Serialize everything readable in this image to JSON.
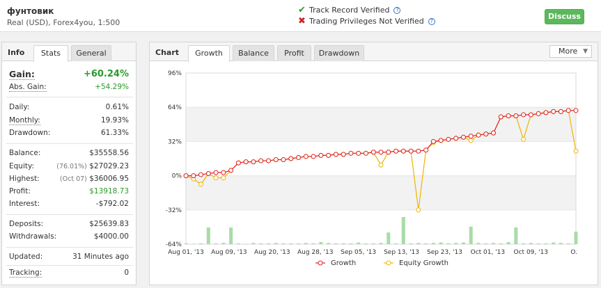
{
  "header": {
    "account_name": "фунтовик",
    "account_sub": "Real (USD), Forex4you, 1:500",
    "track_record": "Track Record Verified",
    "trading_privileges": "Trading Privileges Not Verified",
    "discuss_label": "Discuss",
    "check_color": "#2a9a2a",
    "cross_color": "#cc2222",
    "help_icon_text": "?"
  },
  "info": {
    "title": "Info",
    "tabs": [
      "Stats",
      "General"
    ],
    "active_tab": "Stats",
    "gain_label": "Gain:",
    "gain_value": "+60.24%",
    "abs_gain_label": "Abs. Gain:",
    "abs_gain_value": "+54.29%",
    "daily_label": "Daily:",
    "daily_value": "0.61%",
    "monthly_label": "Monthly:",
    "monthly_value": "19.93%",
    "drawdown_label": "Drawdown:",
    "drawdown_value": "61.33%",
    "balance_label": "Balance:",
    "balance_value": "$35558.56",
    "equity_label": "Equity:",
    "equity_pct": "(76.01%)",
    "equity_value": "$27029.23",
    "highest_label": "Highest:",
    "highest_date": "(Oct 07)",
    "highest_value": "$36006.95",
    "profit_label": "Profit:",
    "profit_value": "$13918.73",
    "interest_label": "Interest:",
    "interest_value": "-$792.02",
    "deposits_label": "Deposits:",
    "deposits_value": "$25639.83",
    "withdrawals_label": "Withdrawals:",
    "withdrawals_value": "$4000.00",
    "updated_label": "Updated:",
    "updated_value": "31 Minutes ago",
    "tracking_label": "Tracking:",
    "tracking_value": "0"
  },
  "chart_panel": {
    "title": "Chart",
    "tabs": [
      "Growth",
      "Balance",
      "Profit",
      "Drawdown"
    ],
    "active_tab": "Growth",
    "more_label": "More",
    "more_chevron": "▼"
  },
  "chart_data": {
    "type": "line",
    "title": "",
    "xlabel": "",
    "ylabel": "",
    "y_tick_labels": [
      "96%",
      "64%",
      "32%",
      "0%",
      "-32%",
      "-64%"
    ],
    "y_ticks": [
      96,
      64,
      32,
      0,
      -32,
      -64
    ],
    "ylim": [
      -64,
      96
    ],
    "x_tick_labels": [
      "Aug 01, '13",
      "Aug 09, '13",
      "Aug 20, '13",
      "Aug 28, '13",
      "Sep 05, '13",
      "Sep 13, '13",
      "Sep 23, '13",
      "Oct 01, '13",
      "Oct 09, '13",
      "O."
    ],
    "legend": [
      "Growth",
      "Equity Growth"
    ],
    "legend_position": "bottom",
    "series": [
      {
        "name": "Growth",
        "color": "#e02020",
        "values": [
          0,
          0,
          1,
          2,
          3,
          3,
          5,
          12,
          13,
          13,
          14,
          14,
          15,
          15,
          16,
          17,
          18,
          18,
          19,
          19,
          20,
          20,
          21,
          21,
          21,
          22,
          22,
          22,
          23,
          23,
          23,
          23,
          24,
          32,
          33,
          34,
          35,
          36,
          37,
          38,
          39,
          40,
          55,
          56,
          56,
          57,
          57,
          58,
          59,
          60,
          60,
          61,
          61
        ]
      },
      {
        "name": "Equity Growth",
        "color": "#f0b400",
        "values": [
          0,
          -3,
          -8,
          2,
          -2,
          -2,
          5,
          12,
          13,
          13,
          14,
          14,
          15,
          15,
          16,
          17,
          18,
          18,
          19,
          19,
          20,
          20,
          21,
          21,
          21,
          22,
          10,
          22,
          23,
          23,
          23,
          -32,
          24,
          31,
          33,
          34,
          35,
          36,
          33,
          38,
          39,
          40,
          55,
          56,
          56,
          34,
          57,
          58,
          59,
          60,
          60,
          61,
          23
        ]
      }
    ],
    "volume_bars": [
      0.02,
      0.01,
      0.02,
      0.4,
      0.02,
      0.03,
      0.4,
      0.02,
      0.01,
      0.03,
      0.02,
      0.02,
      0.03,
      0.02,
      0.02,
      0.02,
      0.03,
      0.02,
      0.05,
      0.03,
      0.02,
      0.02,
      0.02,
      0.04,
      0.02,
      0.02,
      0.03,
      0.28,
      0.02,
      0.65,
      0.02,
      0.03,
      0.02,
      0.03,
      0.04,
      0.02,
      0.03,
      0.04,
      0.42,
      0.03,
      0.02,
      0.03,
      0.02,
      0.05,
      0.4,
      0.02,
      0.03,
      0.02,
      0.02,
      0.04,
      0.03,
      0.02,
      0.3
    ],
    "grid": true,
    "band_color": "#f2f2f2",
    "volume_color": "#a8dca8"
  }
}
